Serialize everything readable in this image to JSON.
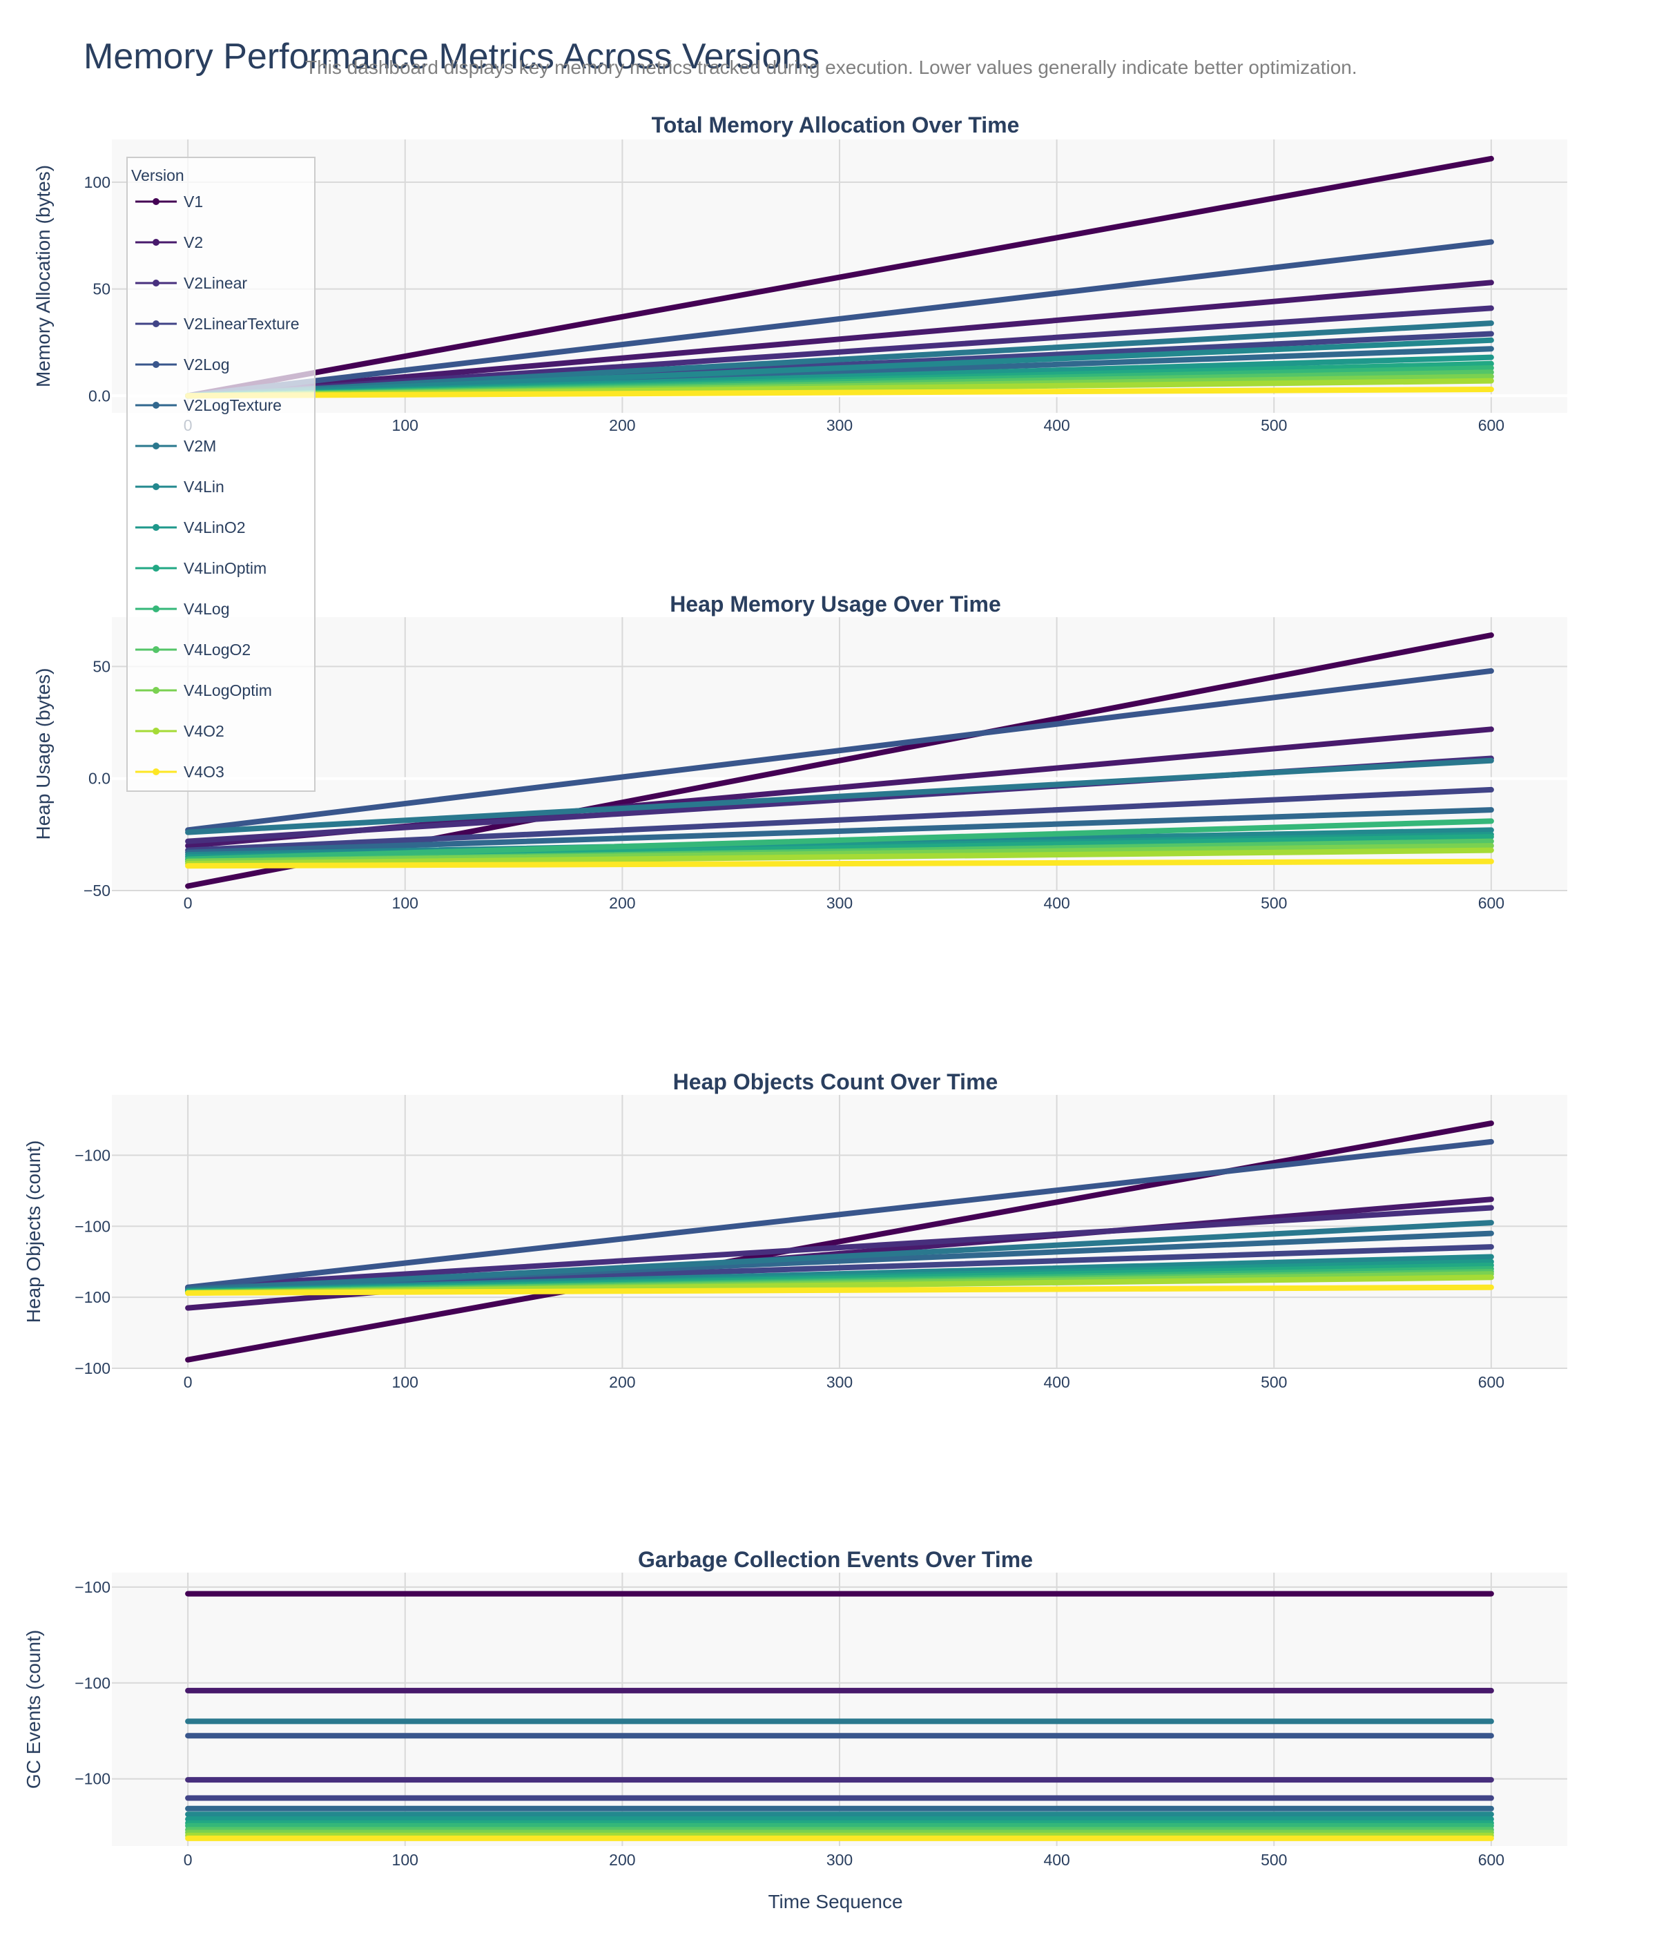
{
  "page": {
    "title": "Memory Performance Metrics Across Versions",
    "subtitle": "This dashboard displays key memory metrics tracked during execution. Lower values generally indicate better optimization."
  },
  "legend": {
    "title": "Version"
  },
  "colors": {
    "V1": "#440154",
    "V2": "#481a6c",
    "V2Linear": "#472f7d",
    "V2LinearTexture": "#414487",
    "V2Log": "#39568c",
    "V2LogTexture": "#31688e",
    "V2M": "#2a788e",
    "V4Lin": "#23888e",
    "V4LinO2": "#1f988b",
    "V4LinOptim": "#22a884",
    "V4Log": "#35b779",
    "V4LogO2": "#54c568",
    "V4LogOptim": "#7ad151",
    "V4O2": "#a5db36",
    "V4O3": "#fde725"
  },
  "chart_data": [
    {
      "type": "line",
      "title": "Total Memory Allocation Over Time",
      "xlabel": "",
      "ylabel": "Memory Allocation (bytes)",
      "xlim": [
        -35,
        635
      ],
      "ylim": [
        -8,
        120
      ],
      "xticks": [
        0,
        100,
        200,
        300,
        400,
        500,
        600
      ],
      "xtick_labels": [
        "0",
        "100",
        "200",
        "300",
        "400",
        "500",
        "600"
      ],
      "yticks": [
        0,
        50,
        100
      ],
      "ytick_labels": [
        "0.0",
        "50",
        "100"
      ],
      "grid": true,
      "legend": "top-left",
      "series": [
        {
          "name": "V1",
          "x": [
            0,
            600
          ],
          "y": [
            0,
            111
          ]
        },
        {
          "name": "V2",
          "x": [
            0,
            600
          ],
          "y": [
            0,
            53
          ]
        },
        {
          "name": "V2Linear",
          "x": [
            0,
            600
          ],
          "y": [
            0,
            41
          ]
        },
        {
          "name": "V2LinearTexture",
          "x": [
            0,
            600
          ],
          "y": [
            0,
            29
          ]
        },
        {
          "name": "V2Log",
          "x": [
            0,
            600
          ],
          "y": [
            0,
            72
          ]
        },
        {
          "name": "V2LogTexture",
          "x": [
            0,
            600
          ],
          "y": [
            0,
            22
          ]
        },
        {
          "name": "V2M",
          "x": [
            0,
            600
          ],
          "y": [
            0,
            34
          ]
        },
        {
          "name": "V4Lin",
          "x": [
            0,
            600
          ],
          "y": [
            0,
            26
          ]
        },
        {
          "name": "V4LinO2",
          "x": [
            0,
            600
          ],
          "y": [
            0,
            18
          ]
        },
        {
          "name": "V4LinOptim",
          "x": [
            0,
            600
          ],
          "y": [
            0,
            15
          ]
        },
        {
          "name": "V4Log",
          "x": [
            0,
            600
          ],
          "y": [
            0,
            13
          ]
        },
        {
          "name": "V4LogO2",
          "x": [
            0,
            600
          ],
          "y": [
            0,
            11
          ]
        },
        {
          "name": "V4LogOptim",
          "x": [
            0,
            600
          ],
          "y": [
            0,
            9
          ]
        },
        {
          "name": "V4O2",
          "x": [
            0,
            600
          ],
          "y": [
            0,
            7
          ]
        },
        {
          "name": "V4O3",
          "x": [
            0,
            600
          ],
          "y": [
            0,
            3
          ]
        }
      ]
    },
    {
      "type": "line",
      "title": "Heap Memory Usage Over Time",
      "xlabel": "",
      "ylabel": "Heap Usage (bytes)",
      "xlim": [
        -35,
        635
      ],
      "ylim": [
        -50,
        72
      ],
      "xticks": [
        0,
        100,
        200,
        300,
        400,
        500,
        600
      ],
      "xtick_labels": [
        "0",
        "100",
        "200",
        "300",
        "400",
        "500",
        "600"
      ],
      "yticks": [
        -50,
        0,
        50
      ],
      "ytick_labels": [
        "−50",
        "0.0",
        "50"
      ],
      "grid": true,
      "series": [
        {
          "name": "V1",
          "x": [
            0,
            600
          ],
          "y": [
            -48,
            64
          ]
        },
        {
          "name": "V2",
          "x": [
            0,
            600
          ],
          "y": [
            -30,
            22
          ]
        },
        {
          "name": "V2Linear",
          "x": [
            0,
            600
          ],
          "y": [
            -28,
            9
          ]
        },
        {
          "name": "V2LinearTexture",
          "x": [
            0,
            600
          ],
          "y": [
            -32,
            -5
          ]
        },
        {
          "name": "V2Log",
          "x": [
            0,
            600
          ],
          "y": [
            -23,
            48
          ]
        },
        {
          "name": "V2LogTexture",
          "x": [
            0,
            600
          ],
          "y": [
            -33,
            -14
          ]
        },
        {
          "name": "V2M",
          "x": [
            0,
            600
          ],
          "y": [
            -24,
            8
          ]
        },
        {
          "name": "V4Lin",
          "x": [
            0,
            600
          ],
          "y": [
            -34,
            -23
          ]
        },
        {
          "name": "V4LinO2",
          "x": [
            0,
            600
          ],
          "y": [
            -35,
            -25
          ]
        },
        {
          "name": "V4LinOptim",
          "x": [
            0,
            600
          ],
          "y": [
            -36,
            -26
          ]
        },
        {
          "name": "V4Log",
          "x": [
            0,
            600
          ],
          "y": [
            -36,
            -19
          ]
        },
        {
          "name": "V4LogO2",
          "x": [
            0,
            600
          ],
          "y": [
            -37,
            -28
          ]
        },
        {
          "name": "V4LogOptim",
          "x": [
            0,
            600
          ],
          "y": [
            -37,
            -30
          ]
        },
        {
          "name": "V4O2",
          "x": [
            0,
            600
          ],
          "y": [
            -38,
            -32
          ]
        },
        {
          "name": "V4O3",
          "x": [
            0,
            600
          ],
          "y": [
            -39,
            -37
          ]
        }
      ]
    },
    {
      "type": "line",
      "title": "Heap Objects Count Over Time",
      "xlabel": "",
      "ylabel": "Heap Objects (count)",
      "xlim": [
        -35,
        635
      ],
      "ylim": [
        0,
        3.85
      ],
      "xticks": [
        0,
        100,
        200,
        300,
        400,
        500,
        600
      ],
      "xtick_labels": [
        "0",
        "100",
        "200",
        "300",
        "400",
        "500",
        "600"
      ],
      "yticks": [
        0,
        1,
        2,
        3
      ],
      "ytick_labels": [
        "−100",
        "−100",
        "−100",
        "−100"
      ],
      "grid": true,
      "series": [
        {
          "name": "V1",
          "x": [
            0,
            600
          ],
          "y": [
            0.12,
            3.45
          ]
        },
        {
          "name": "V2",
          "x": [
            0,
            600
          ],
          "y": [
            0.85,
            2.38
          ]
        },
        {
          "name": "V2Linear",
          "x": [
            0,
            600
          ],
          "y": [
            1.14,
            2.26
          ]
        },
        {
          "name": "V2LinearTexture",
          "x": [
            0,
            600
          ],
          "y": [
            1.12,
            1.71
          ]
        },
        {
          "name": "V2Log",
          "x": [
            0,
            600
          ],
          "y": [
            1.14,
            3.19
          ]
        },
        {
          "name": "V2LogTexture",
          "x": [
            0,
            600
          ],
          "y": [
            1.12,
            1.9
          ]
        },
        {
          "name": "V2M",
          "x": [
            0,
            600
          ],
          "y": [
            1.1,
            2.05
          ]
        },
        {
          "name": "V4Lin",
          "x": [
            0,
            600
          ],
          "y": [
            1.09,
            1.57
          ]
        },
        {
          "name": "V4LinO2",
          "x": [
            0,
            600
          ],
          "y": [
            1.08,
            1.5
          ]
        },
        {
          "name": "V4LinOptim",
          "x": [
            0,
            600
          ],
          "y": [
            1.08,
            1.45
          ]
        },
        {
          "name": "V4Log",
          "x": [
            0,
            600
          ],
          "y": [
            1.07,
            1.4
          ]
        },
        {
          "name": "V4LogO2",
          "x": [
            0,
            600
          ],
          "y": [
            1.07,
            1.36
          ]
        },
        {
          "name": "V4LogOptim",
          "x": [
            0,
            600
          ],
          "y": [
            1.06,
            1.33
          ]
        },
        {
          "name": "V4O2",
          "x": [
            0,
            600
          ],
          "y": [
            1.06,
            1.28
          ]
        },
        {
          "name": "V4O3",
          "x": [
            0,
            600
          ],
          "y": [
            1.06,
            1.14
          ]
        }
      ]
    },
    {
      "type": "line",
      "title": "Garbage Collection Events Over Time",
      "xlabel": "Time Sequence",
      "ylabel": "GC Events (count)",
      "xlim": [
        -35,
        635
      ],
      "ylim": [
        0,
        2.85
      ],
      "xticks": [
        0,
        100,
        200,
        300,
        400,
        500,
        600
      ],
      "xtick_labels": [
        "0",
        "100",
        "200",
        "300",
        "400",
        "500",
        "600"
      ],
      "yticks": [
        0.7,
        1.7,
        2.7
      ],
      "ytick_labels": [
        "−100",
        "−100",
        "−100"
      ],
      "grid": true,
      "series": [
        {
          "name": "V1",
          "x": [
            0,
            600
          ],
          "y": [
            2.63,
            2.63
          ]
        },
        {
          "name": "V2",
          "x": [
            0,
            600
          ],
          "y": [
            1.62,
            1.62
          ]
        },
        {
          "name": "V2Linear",
          "x": [
            0,
            600
          ],
          "y": [
            0.69,
            0.69
          ]
        },
        {
          "name": "V2LinearTexture",
          "x": [
            0,
            600
          ],
          "y": [
            0.5,
            0.5
          ]
        },
        {
          "name": "V2Log",
          "x": [
            0,
            600
          ],
          "y": [
            1.15,
            1.15
          ]
        },
        {
          "name": "V2LogTexture",
          "x": [
            0,
            600
          ],
          "y": [
            0.39,
            0.39
          ]
        },
        {
          "name": "V2M",
          "x": [
            0,
            600
          ],
          "y": [
            1.3,
            1.3
          ]
        },
        {
          "name": "V4Lin",
          "x": [
            0,
            600
          ],
          "y": [
            0.33,
            0.33
          ]
        },
        {
          "name": "V4LinO2",
          "x": [
            0,
            600
          ],
          "y": [
            0.28,
            0.28
          ]
        },
        {
          "name": "V4LinOptim",
          "x": [
            0,
            600
          ],
          "y": [
            0.24,
            0.24
          ]
        },
        {
          "name": "V4Log",
          "x": [
            0,
            600
          ],
          "y": [
            0.21,
            0.21
          ]
        },
        {
          "name": "V4LogO2",
          "x": [
            0,
            600
          ],
          "y": [
            0.17,
            0.17
          ]
        },
        {
          "name": "V4LogOptim",
          "x": [
            0,
            600
          ],
          "y": [
            0.14,
            0.14
          ]
        },
        {
          "name": "V4O2",
          "x": [
            0,
            600
          ],
          "y": [
            0.11,
            0.11
          ]
        },
        {
          "name": "V4O3",
          "x": [
            0,
            600
          ],
          "y": [
            0.08,
            0.08
          ]
        }
      ]
    }
  ]
}
